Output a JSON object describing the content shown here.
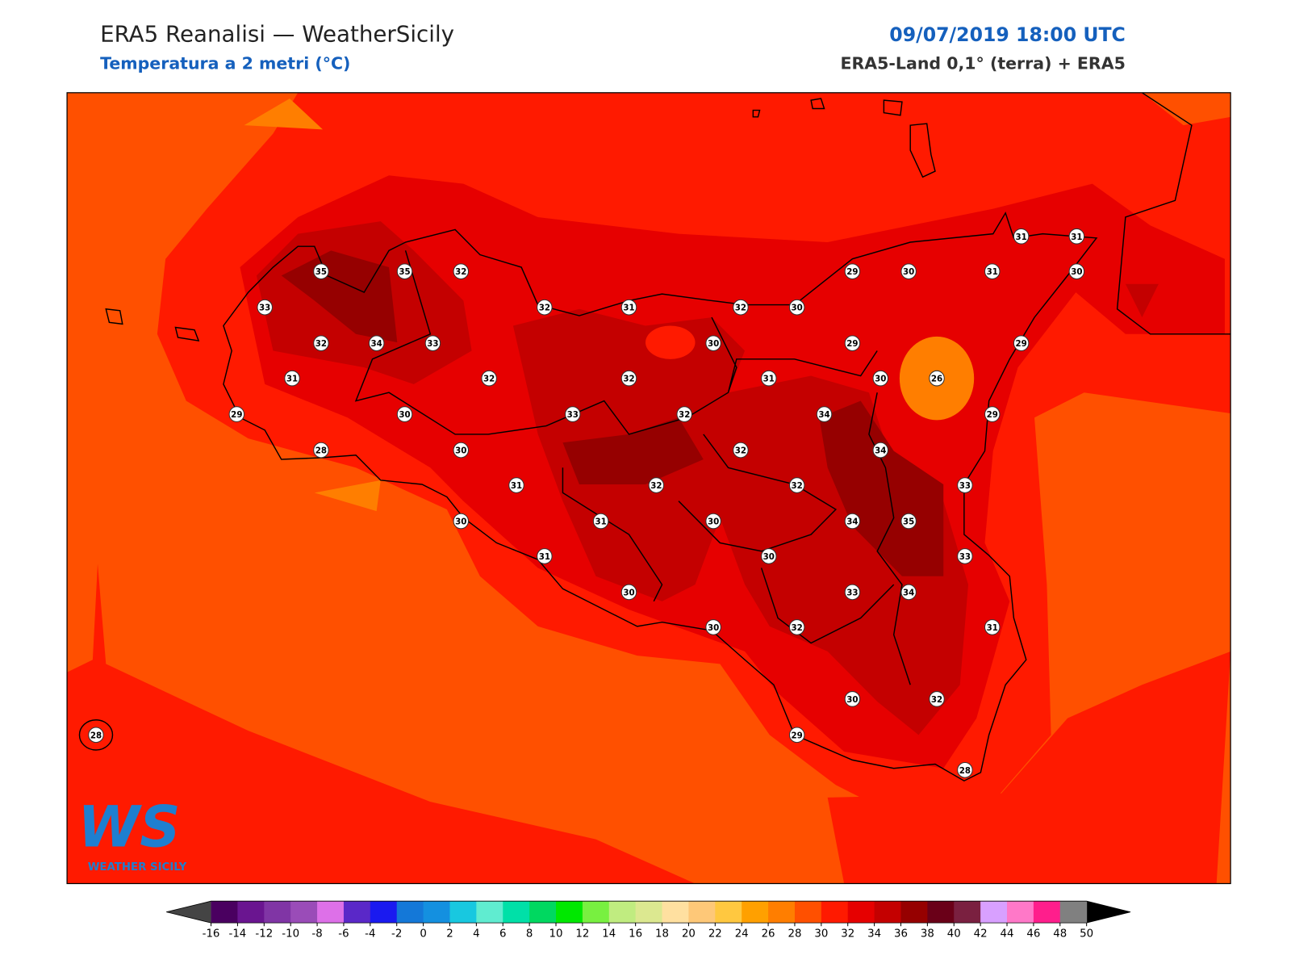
{
  "header": {
    "title": "ERA5 Reanalisi — WeatherSicily",
    "subtitle": "Temperatura a 2 metri (°C)",
    "date": "09/07/2019 18:00 UTC",
    "source": "ERA5-Land 0,1° (terra) + ERA5"
  },
  "logo": {
    "mark": "WS",
    "name": "WEATHER SICILY"
  },
  "stations": [
    35,
    35,
    32,
    33,
    32,
    31,
    32,
    30,
    29,
    30,
    31,
    31,
    31,
    30,
    32,
    34,
    33,
    30,
    29,
    29,
    31,
    32,
    32,
    31,
    30,
    26,
    29,
    30,
    33,
    32,
    34,
    29,
    28,
    30,
    32,
    34,
    31,
    32,
    32,
    33,
    30,
    31,
    30,
    34,
    35,
    31,
    30,
    33,
    30,
    33,
    34,
    30,
    32,
    31,
    30,
    32,
    29,
    28,
    28
  ],
  "colorbar": {
    "ticks": [
      -16,
      -14,
      -12,
      -10,
      -8,
      -6,
      -4,
      -2,
      0,
      2,
      4,
      6,
      8,
      10,
      12,
      14,
      16,
      18,
      20,
      22,
      24,
      26,
      28,
      30,
      32,
      34,
      36,
      38,
      40,
      42,
      44,
      46,
      48,
      50
    ],
    "colors": [
      "#4a0060",
      "#6a1590",
      "#8035a5",
      "#9a4cb8",
      "#dd70e8",
      "#5a28c8",
      "#1a1af0",
      "#1478d8",
      "#1490e0",
      "#18c8e0",
      "#60ecd0",
      "#00e0a8",
      "#00d860",
      "#00e800",
      "#78f040",
      "#c0ec80",
      "#dce890",
      "#ffe0a0",
      "#fec878",
      "#ffc840",
      "#ffa000",
      "#ff7e00",
      "#ff5000",
      "#ff1a00",
      "#e60000",
      "#c40000",
      "#960000",
      "#6a0018",
      "#7a2040",
      "#d8a0ff",
      "#ff78c8",
      "#ff1e8c",
      "#808080"
    ],
    "under_color": "#444444",
    "over_color": "#000000"
  }
}
